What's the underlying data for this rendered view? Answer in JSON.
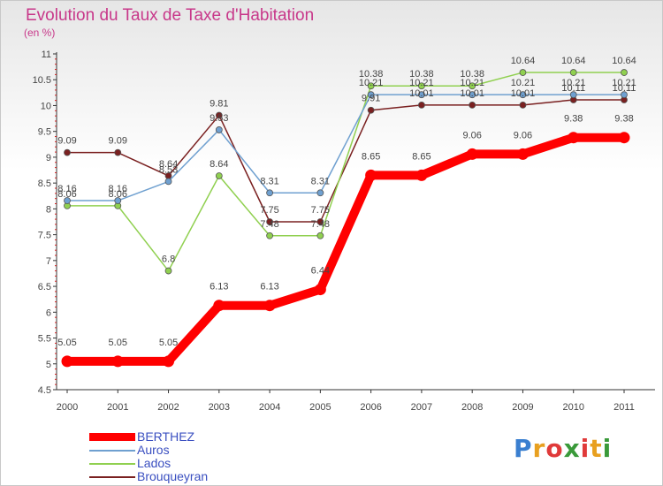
{
  "title": "Evolution du Taux de Taxe d'Habitation",
  "unit_label": "(en %)",
  "logo": {
    "text": "Proxiti",
    "colors": [
      "#3a7fd0",
      "#e8a020",
      "#e03a3a",
      "#3a9a3a",
      "#e03a3a",
      "#e8a020",
      "#3a9a3a"
    ]
  },
  "chart_data": {
    "type": "line",
    "x": [
      "2000",
      "2001",
      "2002",
      "2003",
      "2004",
      "2005",
      "2006",
      "2007",
      "2008",
      "2009",
      "2010",
      "2011"
    ],
    "ylim": [
      4.5,
      11
    ],
    "yticks": [
      "4.5",
      "5",
      "5.5",
      "6",
      "6.5",
      "7",
      "7.5",
      "8",
      "8.5",
      "9",
      "9.5",
      "10",
      "10.5",
      "11"
    ],
    "grid": false,
    "legend_position": "bottom-left",
    "series": [
      {
        "name": "BERTHEZ",
        "color": "#ff0000",
        "values": [
          5.05,
          5.05,
          5.05,
          6.13,
          6.13,
          6.44,
          8.65,
          8.65,
          9.06,
          9.06,
          9.38,
          9.38
        ],
        "labels": [
          "5.05",
          "5.05",
          "5.05",
          "6.13",
          "6.13",
          "6.44",
          "8.65",
          "8.65",
          "9.06",
          "9.06",
          "9.38",
          "9.38"
        ]
      },
      {
        "name": "Auros",
        "color": "#6fa0d0",
        "values": [
          8.16,
          8.16,
          8.53,
          9.53,
          8.31,
          8.31,
          10.21,
          10.21,
          10.21,
          10.21,
          10.21,
          10.21
        ],
        "labels": [
          "8.16",
          "8.16",
          "8.53",
          "9.53",
          "8.31",
          "8.31",
          "10.21",
          "10.21",
          "10.21",
          "10.21",
          "10.21",
          "10.21"
        ]
      },
      {
        "name": "Lados",
        "color": "#90d050",
        "values": [
          8.06,
          8.06,
          6.8,
          8.64,
          7.48,
          7.48,
          10.38,
          10.38,
          10.38,
          10.64,
          10.64,
          10.64
        ],
        "labels": [
          "8.06",
          "8.06",
          "6.8",
          "8.64",
          "7.48",
          "7.48",
          "10.38",
          "10.38",
          "10.38",
          "10.64",
          "10.64",
          "10.64"
        ]
      },
      {
        "name": "Brouqueyran",
        "color": "#7a2020",
        "values": [
          9.09,
          9.09,
          8.64,
          9.81,
          7.75,
          7.75,
          9.91,
          10.01,
          10.01,
          10.01,
          10.11,
          10.11
        ],
        "labels": [
          "9.09",
          "9.09",
          "8.64",
          "9.81",
          "7.75",
          "7.75",
          "9.91",
          "10.01",
          "10.01",
          "10.01",
          "10.11",
          "10.11"
        ]
      }
    ]
  }
}
